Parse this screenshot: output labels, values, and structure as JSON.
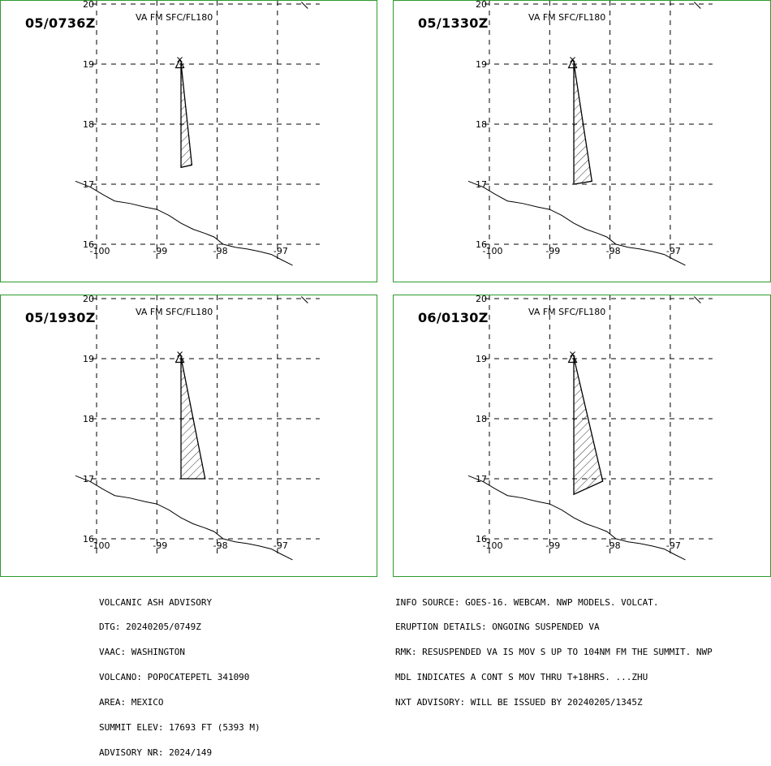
{
  "layer_label": "VA FM SFC/FL180",
  "axes": {
    "lon_ticks": [
      "-100",
      "-99",
      "-98",
      "-97"
    ],
    "lat_ticks": [
      "20",
      "19",
      "18",
      "17",
      "16"
    ]
  },
  "panels": [
    {
      "time": "05/0736Z",
      "ash_polygon": [
        [
          -98.6,
          19.02
        ],
        [
          -98.42,
          17.32
        ],
        [
          -98.6,
          17.28
        ]
      ]
    },
    {
      "time": "05/1330Z",
      "ash_polygon": [
        [
          -98.6,
          19.02
        ],
        [
          -98.3,
          17.05
        ],
        [
          -98.6,
          17.0
        ]
      ]
    },
    {
      "time": "05/1930Z",
      "ash_polygon": [
        [
          -98.6,
          19.02
        ],
        [
          -98.2,
          17.0
        ],
        [
          -98.6,
          17.0
        ]
      ]
    },
    {
      "time": "06/0130Z",
      "ash_polygon": [
        [
          -98.6,
          19.02
        ],
        [
          -98.12,
          16.96
        ],
        [
          -98.6,
          16.74
        ]
      ]
    }
  ],
  "volcano_marker": {
    "lon": -98.62,
    "lat": 19.02
  },
  "coastline": [
    [
      -100.35,
      17.05
    ],
    [
      -100.1,
      16.95
    ],
    [
      -99.9,
      16.83
    ],
    [
      -99.7,
      16.72
    ],
    [
      -99.45,
      16.68
    ],
    [
      -99.2,
      16.62
    ],
    [
      -99.0,
      16.58
    ],
    [
      -98.8,
      16.48
    ],
    [
      -98.6,
      16.35
    ],
    [
      -98.4,
      16.25
    ],
    [
      -98.2,
      16.18
    ],
    [
      -98.05,
      16.12
    ],
    [
      -97.9,
      16.0
    ],
    [
      -97.7,
      15.95
    ],
    [
      -97.5,
      15.92
    ],
    [
      -97.3,
      15.88
    ],
    [
      -97.1,
      15.83
    ],
    [
      -96.95,
      15.75
    ],
    [
      -96.75,
      15.65
    ]
  ],
  "advisory_left": [
    "VOLCANIC ASH ADVISORY",
    "DTG: 20240205/0749Z",
    "VAAC: WASHINGTON",
    "VOLCANO: POPOCATEPETL 341090",
    "AREA: MEXICO",
    "SUMMIT ELEV: 17693 FT (5393 M)",
    "ADVISORY NR: 2024/149"
  ],
  "advisory_right": [
    "INFO SOURCE: GOES-16. WEBCAM. NWP MODELS. VOLCAT.",
    "ERUPTION DETAILS: ONGOING SUSPENDED VA",
    "RMK: RESUSPENDED VA IS MOV S UP TO 104NM FM THE SUMMIT. NWP",
    "MDL INDICATES A CONT S MOV THRU T+18HRS. ...ZHU",
    "NXT ADVISORY: WILL BE ISSUED BY 20240205/1345Z"
  ]
}
